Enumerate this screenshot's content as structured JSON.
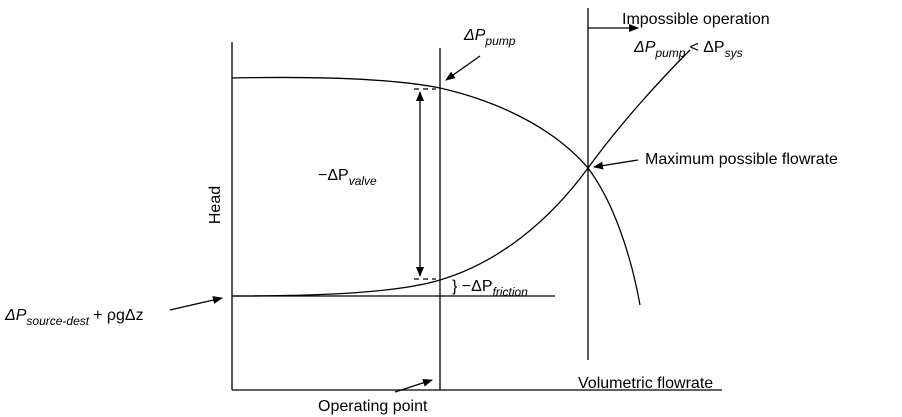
{
  "labels": {
    "pump_curve": {
      "text": "ΔP",
      "sub": "pump"
    },
    "impossible": "Impossible operation",
    "inequality": [
      {
        "text": "ΔP",
        "sub": "pump"
      },
      {
        "text": "< ΔP",
        "sub": "sys"
      }
    ],
    "max_flow": "Maximum possible flowrate",
    "valve": {
      "text": "−ΔP",
      "sub": "valve"
    },
    "y_axis": "Head",
    "friction": {
      "text": "} −ΔP",
      "sub": "friction"
    },
    "static": [
      {
        "text": "ΔP",
        "sub": "source-dest"
      },
      {
        "text": "+ ρgΔz"
      }
    ],
    "x_axis": "Volumetric flowrate",
    "operating": "Operating point"
  }
}
